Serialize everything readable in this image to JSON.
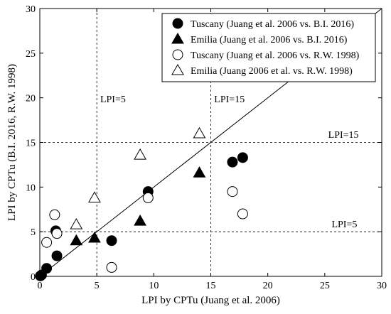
{
  "chart_data": {
    "type": "scatter",
    "xlabel": "LPI by CPTu (Juang et al. 2006)",
    "ylabel": "LPI by CPTu (B.I. 2016, R.W. 1998)",
    "xlim": [
      0,
      30
    ],
    "ylim": [
      0,
      30
    ],
    "xticks": [
      0,
      5,
      10,
      15,
      20,
      25,
      30
    ],
    "yticks": [
      0,
      5,
      10,
      15,
      20,
      25,
      30
    ],
    "grid": false,
    "legend_position": "top-right",
    "reference_lines": {
      "diagonal": {
        "from": [
          0,
          0
        ],
        "to": [
          30,
          30
        ]
      },
      "vertical": [
        5,
        15
      ],
      "horizontal": [
        5,
        15
      ]
    },
    "annotations": [
      {
        "text": "LPI=5",
        "x": 5.3,
        "y": 19.5
      },
      {
        "text": "LPI=15",
        "x": 15.3,
        "y": 19.5
      },
      {
        "text": "LPI=15",
        "x": 25.3,
        "y": 15.5
      },
      {
        "text": "LPI=5",
        "x": 25.6,
        "y": 5.5
      }
    ],
    "series": [
      {
        "name": "Tuscany (Juang et al. 2006 vs. B.I. 2016)",
        "marker": "circle-filled",
        "points": [
          [
            0.05,
            0.05
          ],
          [
            0.15,
            0.15
          ],
          [
            0.6,
            0.9
          ],
          [
            1.4,
            5.1
          ],
          [
            1.5,
            2.3
          ],
          [
            6.3,
            4.0
          ],
          [
            9.5,
            9.5
          ],
          [
            16.9,
            12.8
          ],
          [
            17.8,
            13.3
          ]
        ]
      },
      {
        "name": "Emilia (Juang et al. 2006 vs. B.I. 2016)",
        "marker": "triangle-filled",
        "points": [
          [
            3.2,
            4.0
          ],
          [
            4.8,
            4.3
          ],
          [
            8.8,
            6.2
          ],
          [
            14.0,
            11.6
          ]
        ]
      },
      {
        "name": "Tuscany (Juang et al. 2006 vs. R.W. 1998)",
        "marker": "circle-open",
        "points": [
          [
            0.6,
            3.8
          ],
          [
            1.3,
            6.9
          ],
          [
            1.5,
            4.8
          ],
          [
            6.3,
            1.0
          ],
          [
            9.5,
            8.8
          ],
          [
            16.9,
            9.5
          ],
          [
            17.8,
            7.0
          ]
        ]
      },
      {
        "name": "Emilia (Juang 2006 et al. vs. R.W. 1998)",
        "marker": "triangle-open",
        "points": [
          [
            3.2,
            5.8
          ],
          [
            4.8,
            8.8
          ],
          [
            8.8,
            13.6
          ],
          [
            14.0,
            16.0
          ]
        ]
      }
    ]
  }
}
